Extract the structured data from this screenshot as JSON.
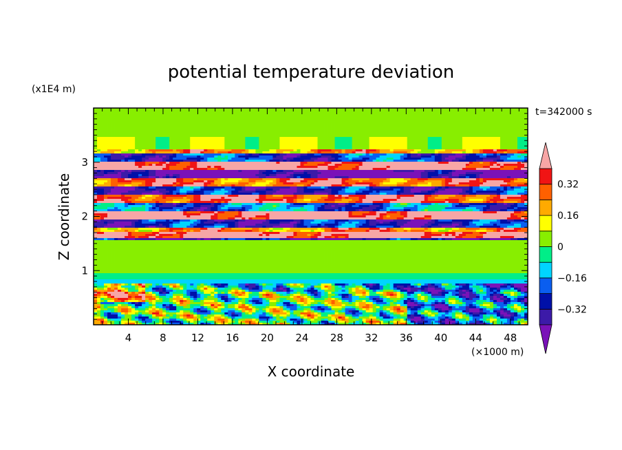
{
  "chart_data": {
    "type": "heatmap",
    "title": "potential temperature deviation",
    "xlabel": "X coordinate",
    "ylabel": "Z coordinate",
    "x_unit": "(×1000 m)",
    "y_unit": "(x1E4 m)",
    "time_label": "t=342000 s",
    "xlim": [
      0,
      50
    ],
    "ylim": [
      0,
      4
    ],
    "x_ticks": [
      4,
      8,
      12,
      16,
      20,
      24,
      28,
      32,
      36,
      40,
      44,
      48
    ],
    "y_ticks": [
      1,
      2,
      3
    ],
    "colorbar": {
      "labels": [
        {
          "text": "0.32",
          "value": 0.32
        },
        {
          "text": "0.16",
          "value": 0.16
        },
        {
          "text": "0",
          "value": 0
        },
        {
          "text": "−0.16",
          "value": -0.16
        },
        {
          "text": "−0.32",
          "value": -0.32
        }
      ],
      "levels": [
        -0.4,
        -0.32,
        -0.24,
        -0.16,
        -0.08,
        0,
        0.08,
        0.16,
        0.24,
        0.32,
        0.4
      ],
      "colors": [
        "#7a12b8",
        "#3c1aa8",
        "#0010a8",
        "#0a5ef0",
        "#00d4ff",
        "#00ee88",
        "#88ee00",
        "#ffff00",
        "#ffaa00",
        "#ff6000",
        "#f01414",
        "#f7a6a6"
      ],
      "extend": "both"
    },
    "layers": [
      {
        "z": [
          3.9,
          4.0
        ],
        "pattern": "calm-upper",
        "mean": 0.05
      },
      {
        "z": [
          3.25,
          3.9
        ],
        "pattern": "calm-upper",
        "mean": 0.06
      },
      {
        "z": [
          3.15,
          3.25
        ],
        "pattern": "banded",
        "mean": 0.22
      },
      {
        "z": [
          3.0,
          3.15
        ],
        "pattern": "banded",
        "mean": -0.25
      },
      {
        "z": [
          2.85,
          3.0
        ],
        "pattern": "banded",
        "mean": 0.45
      },
      {
        "z": [
          2.7,
          2.85
        ],
        "pattern": "banded",
        "mean": -0.45
      },
      {
        "z": [
          2.55,
          2.7
        ],
        "pattern": "banded",
        "mean": 0.3
      },
      {
        "z": [
          2.4,
          2.55
        ],
        "pattern": "banded",
        "mean": -0.3
      },
      {
        "z": [
          2.25,
          2.4
        ],
        "pattern": "banded",
        "mean": 0.35
      },
      {
        "z": [
          2.1,
          2.25
        ],
        "pattern": "banded",
        "mean": -0.2
      },
      {
        "z": [
          1.95,
          2.1
        ],
        "pattern": "banded",
        "mean": 0.45
      },
      {
        "z": [
          1.8,
          1.95
        ],
        "pattern": "banded",
        "mean": -0.3
      },
      {
        "z": [
          1.7,
          1.8
        ],
        "pattern": "banded",
        "mean": 0.25
      },
      {
        "z": [
          1.6,
          1.7
        ],
        "pattern": "banded",
        "mean": 0.45
      },
      {
        "z": [
          1.55,
          1.6
        ],
        "pattern": "banded",
        "mean": -0.35
      },
      {
        "z": [
          0.85,
          1.55
        ],
        "pattern": "calm-middle",
        "mean": 0.02
      },
      {
        "z": [
          0.75,
          0.85
        ],
        "pattern": "calm-middle",
        "mean": -0.04
      },
      {
        "z": [
          0.6,
          0.75
        ],
        "pattern": "turbulent-lower",
        "mean": -0.1
      },
      {
        "z": [
          0.0,
          0.6
        ],
        "pattern": "turbulent-lower",
        "mean": 0.0
      }
    ]
  }
}
